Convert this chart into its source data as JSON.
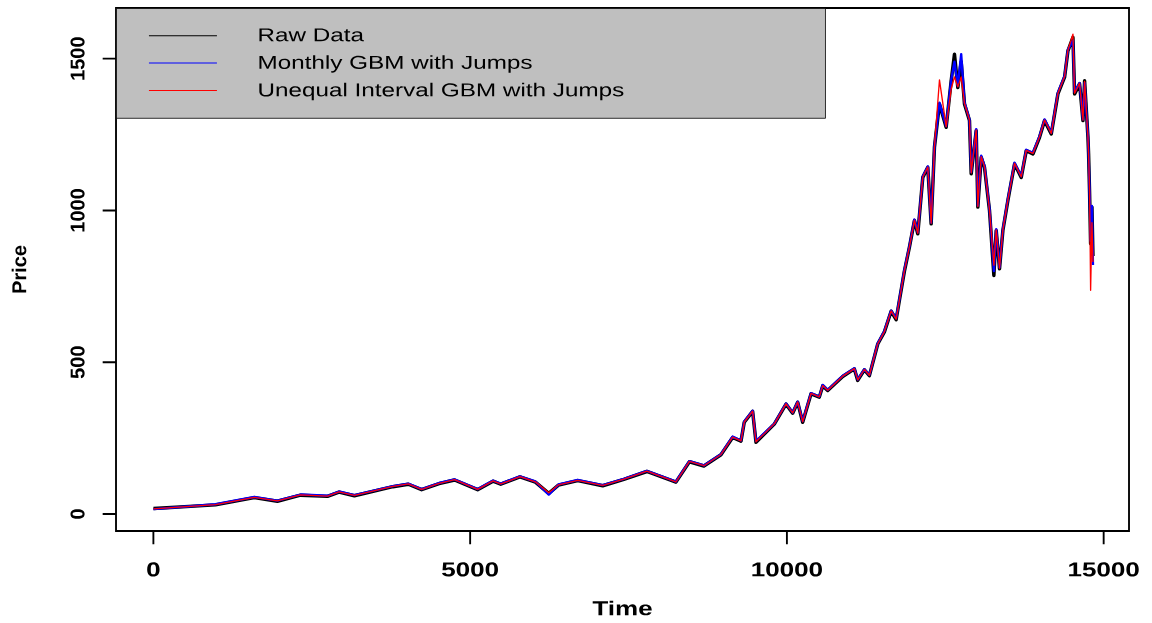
{
  "chart_data": {
    "type": "line",
    "xlabel": "Time",
    "ylabel": "Price",
    "x": [
      1,
      980,
      1593,
      1957,
      2323,
      2748,
      2930,
      3173,
      3781,
      4024,
      4234,
      4510,
      4753,
      5118,
      5361,
      5483,
      5786,
      6030,
      6241,
      6394,
      6698,
      7093,
      7426,
      7789,
      8153,
      8248,
      8461,
      8690,
      8959,
      9143,
      9275,
      9327,
      9459,
      9512,
      9801,
      9986,
      10091,
      10170,
      10249,
      10381,
      10512,
      10565,
      10644,
      10881,
      11065,
      11118,
      11223,
      11302,
      11434,
      11539,
      11645,
      11724,
      11776,
      11855,
      11934,
      12013,
      12066,
      12145,
      12224,
      12277,
      12329,
      12408,
      12514,
      12593,
      12645,
      12698,
      12751,
      12803,
      12882,
      12909,
      12988,
      13014,
      13067,
      13119,
      13198,
      13267,
      13304,
      13356,
      13409,
      13488,
      13593,
      13699,
      13778,
      13883,
      13988,
      14067,
      14173,
      14278,
      14383,
      14436,
      14515,
      14541,
      14620,
      14673,
      14699,
      14752,
      14762,
      14778,
      14794,
      14815,
      14831
    ],
    "series": [
      {
        "name": "Raw Data",
        "color": "#000000",
        "values": [
          18,
          30,
          54,
          42,
          62,
          58,
          72,
          60,
          90,
          98,
          80,
          100,
          112,
          80,
          108,
          98,
          122,
          105,
          68,
          95,
          110,
          93,
          114,
          140,
          112,
          105,
          172,
          158,
          195,
          252,
          240,
          302,
          338,
          236,
          296,
          362,
          332,
          368,
          302,
          396,
          385,
          422,
          407,
          453,
          478,
          440,
          475,
          456,
          560,
          600,
          668,
          640,
          704,
          800,
          879,
          967,
          923,
          1109,
          1142,
          956,
          1208,
          1351,
          1274,
          1427,
          1515,
          1405,
          1490,
          1351,
          1296,
          1121,
          1263,
          1011,
          1175,
          1142,
          1000,
          786,
          934,
          808,
          934,
          1033,
          1153,
          1109,
          1197,
          1186,
          1241,
          1296,
          1252,
          1384,
          1439,
          1526,
          1570,
          1384,
          1417,
          1296,
          1427,
          1241,
          1186,
          1055,
          890,
          1011,
          850
        ]
      },
      {
        "name": "Monthly GBM with Jumps",
        "color": "#0000ff",
        "values": [
          16,
          32,
          56,
          44,
          64,
          60,
          74,
          62,
          92,
          100,
          82,
          102,
          114,
          82,
          110,
          100,
          124,
          107,
          64,
          97,
          112,
          95,
          116,
          142,
          114,
          107,
          174,
          160,
          197,
          255,
          242,
          305,
          340,
          240,
          298,
          364,
          334,
          370,
          306,
          398,
          387,
          425,
          409,
          455,
          480,
          443,
          477,
          458,
          562,
          603,
          670,
          645,
          707,
          805,
          882,
          970,
          928,
          1112,
          1145,
          960,
          1212,
          1355,
          1278,
          1430,
          1490,
          1410,
          1515,
          1356,
          1300,
          1126,
          1268,
          1016,
          1180,
          1147,
          1005,
          800,
          938,
          812,
          938,
          1037,
          1157,
          1113,
          1200,
          1190,
          1245,
          1300,
          1256,
          1388,
          1443,
          1530,
          1560,
          1390,
          1420,
          1300,
          1420,
          1245,
          1190,
          1060,
          900,
          1015,
          820
        ]
      },
      {
        "name": "Unequal Interval GBM with Jumps",
        "color": "#ff0000",
        "values": [
          17,
          31,
          55,
          43,
          63,
          59,
          73,
          61,
          91,
          99,
          81,
          101,
          113,
          81,
          109,
          99,
          123,
          106,
          70,
          96,
          111,
          94,
          115,
          141,
          113,
          106,
          173,
          159,
          196,
          253,
          241,
          303,
          339,
          238,
          297,
          363,
          333,
          369,
          304,
          397,
          386,
          423,
          408,
          454,
          479,
          442,
          476,
          457,
          561,
          601,
          669,
          642,
          705,
          802,
          880,
          968,
          925,
          1110,
          1143,
          958,
          1210,
          1430,
          1276,
          1400,
          1440,
          1407,
          1440,
          1353,
          1298,
          1124,
          1265,
          1013,
          1177,
          1144,
          1002,
          820,
          936,
          810,
          936,
          1035,
          1155,
          1111,
          1198,
          1188,
          1243,
          1298,
          1254,
          1386,
          1441,
          1528,
          1581,
          1386,
          1419,
          1298,
          1425,
          1243,
          1188,
          1057,
          737,
          960,
          830
        ]
      }
    ],
    "xlim": [
      -590,
      15400
    ],
    "ylim": [
      -56,
      1667
    ],
    "xticks": [
      0,
      5000,
      10000,
      15000
    ],
    "yticks": [
      0,
      500,
      1000,
      1500
    ],
    "legend": "top left",
    "marker": "none",
    "line_style": "solid"
  }
}
